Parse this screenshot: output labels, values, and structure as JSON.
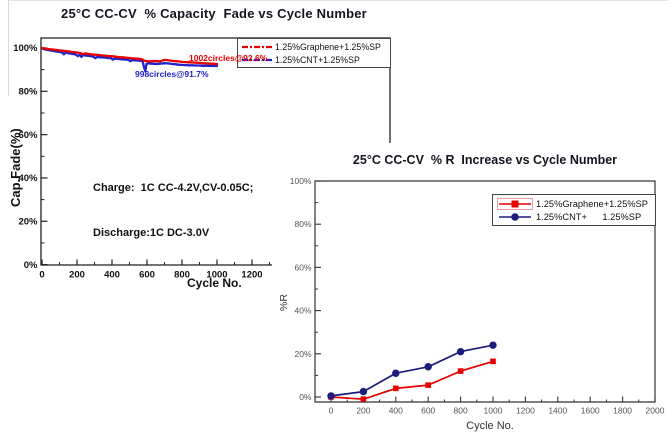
{
  "page": {
    "background": "#ffffff"
  },
  "chart_data": [
    {
      "id": "capacity_fade",
      "type": "line",
      "title": "25°C CC-CV  % Capacity  Fade vs Cycle Number",
      "xlabel": "Cycle No.",
      "ylabel": "Cap.Fade(%)",
      "xlim": [
        0,
        1300
      ],
      "ylim": [
        0,
        104
      ],
      "x_ticks": [
        0,
        200,
        400,
        600,
        800,
        1000,
        1200
      ],
      "x_minor_ticks": [
        100,
        300,
        500,
        700,
        900,
        1100,
        1300
      ],
      "y_ticks": [
        0,
        20,
        40,
        60,
        80,
        100
      ],
      "y_minor_ticks": [
        10,
        30,
        50,
        70,
        90
      ],
      "y_tick_suffix": "%",
      "grid": false,
      "legend_position": "top-right",
      "conditions": [
        "Charge:  1C CC-4.2V,CV-0.05C;",
        "Discharge:1C DC-3.0V"
      ],
      "annotations": [
        {
          "text": "1002circles@92.6%",
          "color": "#e60000"
        },
        {
          "text": "998circles@91.7%",
          "color": "#2222cc"
        }
      ],
      "series": [
        {
          "name": "1.25%Graphene+1.25%SP",
          "color": "#e60000",
          "line_style": "solid",
          "final_value_pct": 92.6,
          "final_cycles": 1002,
          "points": [
            [
              0,
              100
            ],
            [
              20,
              99.7
            ],
            [
              40,
              99.5
            ],
            [
              60,
              99.3
            ],
            [
              80,
              99.1
            ],
            [
              100,
              98.9
            ],
            [
              120,
              98.7
            ],
            [
              140,
              98.5
            ],
            [
              160,
              98.3
            ],
            [
              180,
              98.1
            ],
            [
              200,
              97.9
            ],
            [
              220,
              97.7
            ],
            [
              235,
              97.1
            ],
            [
              245,
              97.5
            ],
            [
              260,
              97.3
            ],
            [
              280,
              97.1
            ],
            [
              300,
              96.9
            ],
            [
              320,
              96.8
            ],
            [
              340,
              96.6
            ],
            [
              360,
              96.5
            ],
            [
              380,
              96.3
            ],
            [
              400,
              96.2
            ],
            [
              420,
              96.0
            ],
            [
              440,
              95.8
            ],
            [
              460,
              95.7
            ],
            [
              480,
              95.5
            ],
            [
              500,
              95.4
            ],
            [
              520,
              95.2
            ],
            [
              540,
              95.1
            ],
            [
              555,
              95.0
            ],
            [
              570,
              94.8
            ],
            [
              585,
              94.2
            ],
            [
              600,
              93.9
            ],
            [
              615,
              93.8
            ],
            [
              630,
              93.9
            ],
            [
              645,
              94.0
            ],
            [
              660,
              93.9
            ],
            [
              675,
              93.8
            ],
            [
              690,
              94.3
            ],
            [
              705,
              94.5
            ],
            [
              720,
              94.3
            ],
            [
              735,
              94.2
            ],
            [
              750,
              94.0
            ],
            [
              765,
              93.9
            ],
            [
              780,
              93.8
            ],
            [
              800,
              93.6
            ],
            [
              820,
              93.5
            ],
            [
              840,
              93.4
            ],
            [
              860,
              93.3
            ],
            [
              880,
              93.2
            ],
            [
              900,
              93.1
            ],
            [
              920,
              93.0
            ],
            [
              940,
              92.9
            ],
            [
              960,
              92.8
            ],
            [
              980,
              92.7
            ],
            [
              1000,
              92.6
            ]
          ]
        },
        {
          "name": "1.25%CNT+1.25%SP",
          "color": "#2222cc",
          "line_style": "solid",
          "final_value_pct": 91.7,
          "final_cycles": 998,
          "points": [
            [
              0,
              99.8
            ],
            [
              20,
              99.3
            ],
            [
              40,
              99.0
            ],
            [
              60,
              98.7
            ],
            [
              80,
              98.4
            ],
            [
              100,
              98.2
            ],
            [
              115,
              97.9
            ],
            [
              125,
              97.1
            ],
            [
              135,
              97.9
            ],
            [
              150,
              97.6
            ],
            [
              170,
              97.3
            ],
            [
              190,
              97.1
            ],
            [
              205,
              96.2
            ],
            [
              215,
              96.9
            ],
            [
              225,
              95.9
            ],
            [
              235,
              96.7
            ],
            [
              250,
              96.5
            ],
            [
              270,
              96.3
            ],
            [
              290,
              96.1
            ],
            [
              305,
              95.3
            ],
            [
              315,
              95.9
            ],
            [
              335,
              95.7
            ],
            [
              355,
              95.6
            ],
            [
              375,
              95.4
            ],
            [
              395,
              95.3
            ],
            [
              405,
              94.6
            ],
            [
              415,
              95.1
            ],
            [
              435,
              95.0
            ],
            [
              455,
              94.8
            ],
            [
              475,
              94.7
            ],
            [
              495,
              94.5
            ],
            [
              505,
              93.9
            ],
            [
              515,
              94.4
            ],
            [
              535,
              94.3
            ],
            [
              550,
              94.2
            ],
            [
              565,
              94.1
            ],
            [
              575,
              93.9
            ],
            [
              583,
              91.2
            ],
            [
              590,
              89.3
            ],
            [
              597,
              92.6
            ],
            [
              605,
              92.9
            ],
            [
              620,
              92.8
            ],
            [
              640,
              92.7
            ],
            [
              660,
              92.6
            ],
            [
              680,
              92.8
            ],
            [
              700,
              93.0
            ],
            [
              715,
              92.9
            ],
            [
              730,
              92.8
            ],
            [
              745,
              92.6
            ],
            [
              760,
              92.5
            ],
            [
              780,
              92.3
            ],
            [
              800,
              92.2
            ],
            [
              820,
              92.1
            ],
            [
              840,
              92.0
            ],
            [
              860,
              92.0
            ],
            [
              880,
              91.9
            ],
            [
              900,
              91.9
            ],
            [
              920,
              91.8
            ],
            [
              940,
              91.8
            ],
            [
              960,
              91.8
            ],
            [
              980,
              91.7
            ],
            [
              1000,
              91.7
            ]
          ]
        }
      ]
    },
    {
      "id": "r_increase",
      "type": "line",
      "title": "25°C CC-CV  % R  Increase vs Cycle Number",
      "xlabel": "Cycle No.",
      "ylabel": "%R",
      "xlim": [
        0,
        2000
      ],
      "ylim": [
        0,
        100
      ],
      "x_ticks": [
        0,
        200,
        400,
        600,
        800,
        1000,
        1200,
        1400,
        1600,
        1800,
        2000
      ],
      "x_minor_ticks": [
        100,
        300,
        500,
        700,
        900,
        1100,
        1300,
        1500,
        1700,
        1900
      ],
      "y_ticks": [
        0,
        20,
        40,
        60,
        80,
        100
      ],
      "y_minor_ticks": [
        10,
        30,
        50,
        70,
        90
      ],
      "y_tick_suffix": "%",
      "grid": false,
      "legend_position": "top-right",
      "x": [
        0,
        200,
        400,
        600,
        800,
        1000
      ],
      "series": [
        {
          "name": "1.25%Graphene+1.25%SP",
          "legend_label": "1.25%Graphene+1.25%SP",
          "color": "#e60000",
          "marker": "square",
          "values": [
            0,
            -1,
            4,
            5.5,
            12,
            16.5
          ]
        },
        {
          "name": "1.25%CNT+1.25%SP",
          "legend_label": "1.25%CNT+      1.25%SP",
          "color": "#1c1c7a",
          "marker": "circle",
          "values": [
            0.5,
            2.5,
            11,
            14,
            21,
            24
          ]
        }
      ]
    }
  ]
}
